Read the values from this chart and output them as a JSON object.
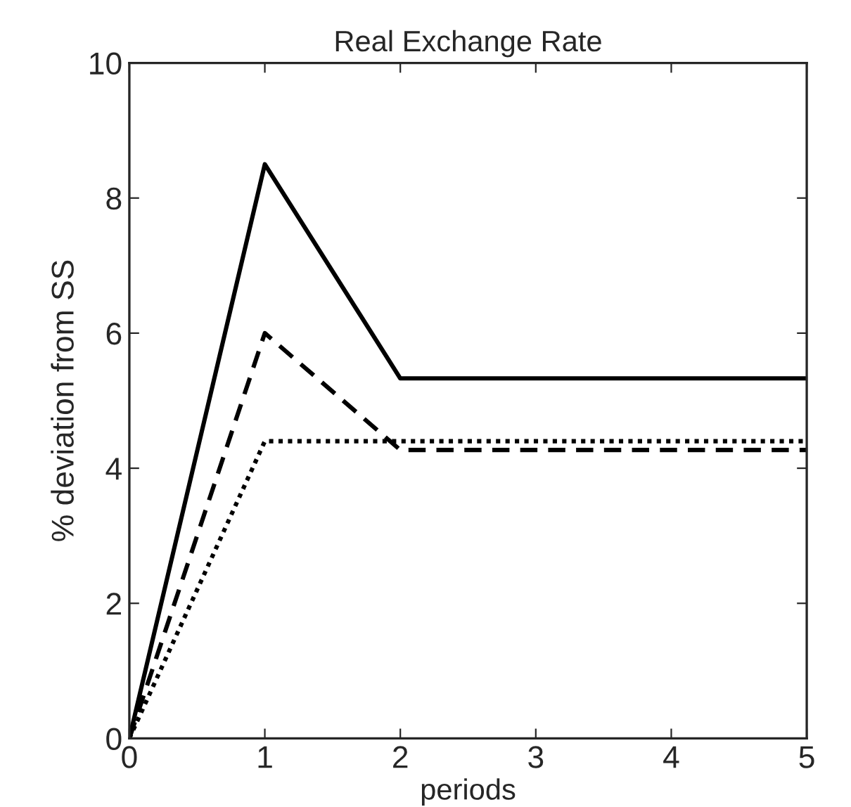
{
  "chart_data": {
    "type": "line",
    "title": "Real Exchange Rate",
    "xlabel": "periods",
    "ylabel": "% deviation from SS",
    "x": [
      0,
      1,
      2,
      3,
      4,
      5
    ],
    "series": [
      {
        "color": "#000000",
        "line_style": "solid",
        "values": [
          0,
          8.5,
          5.33,
          5.33,
          5.33,
          5.33
        ]
      },
      {
        "color": "#000000",
        "line_style": "dashed",
        "values": [
          0,
          6.0,
          4.27,
          4.27,
          4.27,
          4.27
        ]
      },
      {
        "color": "#000000",
        "line_style": "dotted",
        "values": [
          0,
          4.4,
          4.4,
          4.4,
          4.4,
          4.4
        ]
      }
    ],
    "xlim": [
      0,
      5
    ],
    "ylim": [
      0,
      10
    ],
    "xticks": [
      0,
      1,
      2,
      3,
      4,
      5
    ],
    "yticks": [
      0,
      2,
      4,
      6,
      8,
      10
    ],
    "grid": false,
    "marker": "none"
  }
}
